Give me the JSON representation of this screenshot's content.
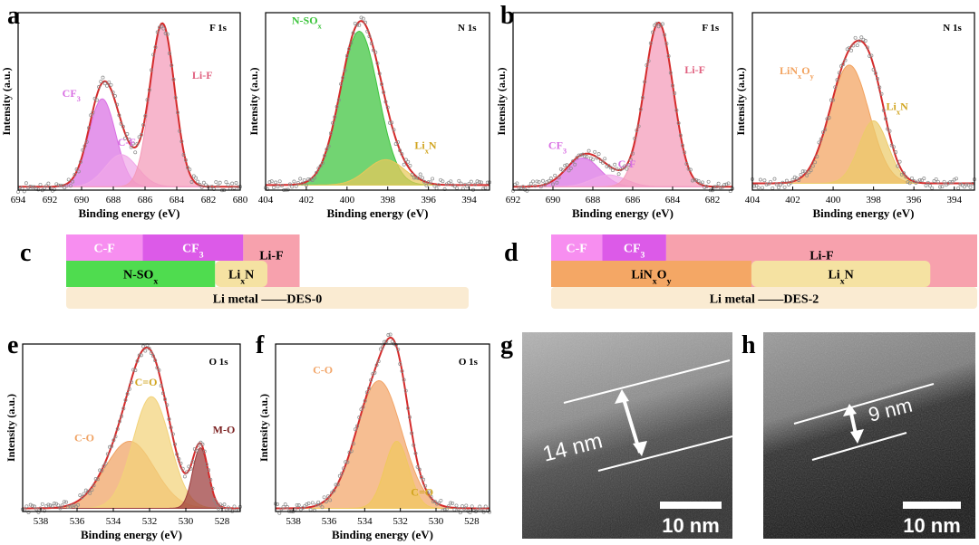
{
  "figure": {
    "panel_labels": [
      "a",
      "b",
      "c",
      "d",
      "e",
      "f",
      "g",
      "h"
    ]
  },
  "chart_data": [
    {
      "id": "a-F1s",
      "type": "area",
      "panel": "a",
      "title": "F 1s",
      "xlabel": "Binding energy (eV)",
      "ylabel": "Intensity (a.u.)",
      "xlim": [
        694,
        680
      ],
      "ylim": [
        0,
        1.05
      ],
      "xticks": [
        694,
        692,
        690,
        688,
        686,
        684,
        682,
        680
      ],
      "background": 0.02,
      "peaks": [
        {
          "name": "CF3",
          "label": "CF",
          "sub": "3",
          "center": 688.7,
          "height": 0.52,
          "fwhm": 2.0,
          "color": "#d96fe3"
        },
        {
          "name": "C-F",
          "label": "C-F",
          "center": 687.5,
          "height": 0.19,
          "fwhm": 2.4,
          "color": "#f0a8e8"
        },
        {
          "name": "Li-F",
          "label": "Li-F",
          "center": 684.9,
          "height": 0.96,
          "fwhm": 1.8,
          "color": "#f49ab8"
        }
      ],
      "envelope_color": "#d42b2b"
    },
    {
      "id": "a-N1s",
      "type": "area",
      "panel": "a",
      "title": "N 1s",
      "xlabel": "Binding energy (eV)",
      "ylabel": "Intensity (a.u.)",
      "xlim": [
        404,
        393
      ],
      "ylim": [
        0,
        1.05
      ],
      "xticks": [
        404,
        402,
        400,
        398,
        396,
        394
      ],
      "background": 0.03,
      "peaks": [
        {
          "name": "N-SOx",
          "label": "N-SO",
          "sub": "x",
          "center": 399.4,
          "height": 0.91,
          "fwhm": 2.2,
          "color": "#3cc43c"
        },
        {
          "name": "LixN",
          "label": "Li",
          "sub": "x",
          "tail": "N",
          "center": 398.1,
          "height": 0.15,
          "fwhm": 2.2,
          "color": "#e8c85a"
        }
      ],
      "envelope_color": "#d42b2b"
    },
    {
      "id": "b-F1s",
      "type": "area",
      "panel": "b",
      "title": "F 1s",
      "xlabel": "Binding energy (eV)",
      "ylabel": "Intensity (a.u.)",
      "xlim": [
        692,
        681
      ],
      "ylim": [
        0,
        1.05
      ],
      "xticks": [
        692,
        690,
        688,
        686,
        684,
        682
      ],
      "background": 0.02,
      "peaks": [
        {
          "name": "CF3",
          "label": "CF",
          "sub": "3",
          "center": 688.5,
          "height": 0.17,
          "fwhm": 2.0,
          "color": "#d96fe3"
        },
        {
          "name": "C-F",
          "label": "C-F",
          "center": 687.2,
          "height": 0.07,
          "fwhm": 2.0,
          "color": "#f0a8e8"
        },
        {
          "name": "Li-F",
          "label": "Li-F",
          "center": 684.7,
          "height": 0.97,
          "fwhm": 1.7,
          "color": "#f49ab8"
        }
      ],
      "envelope_color": "#d42b2b"
    },
    {
      "id": "b-N1s",
      "type": "area",
      "panel": "b",
      "title": "N 1s",
      "xlabel": "Binding energy (eV)",
      "ylabel": "Intensity (a.u.)",
      "xlim": [
        404,
        393
      ],
      "ylim": [
        0,
        1.05
      ],
      "xticks": [
        404,
        402,
        400,
        398,
        396,
        394
      ],
      "background": 0.04,
      "peaks": [
        {
          "name": "LiNxOy",
          "label": "LiN",
          "sub": "x",
          "tail": "O",
          "sub2": "y",
          "center": 399.2,
          "height": 0.7,
          "fwhm": 2.3,
          "color": "#f2a25e"
        },
        {
          "name": "LixN",
          "label": "Li",
          "sub": "x",
          "tail": "N",
          "center": 398.0,
          "height": 0.37,
          "fwhm": 1.7,
          "color": "#eccb6a"
        }
      ],
      "envelope_color": "#d42b2b"
    },
    {
      "id": "e-O1s",
      "type": "area",
      "panel": "e",
      "title": "O 1s",
      "xlabel": "Binding energy (eV)",
      "ylabel": "Intensity (a.u.)",
      "xlim": [
        539,
        527
      ],
      "ylim": [
        0,
        1.05
      ],
      "xticks": [
        538,
        536,
        534,
        532,
        530,
        528
      ],
      "background": 0.02,
      "peaks": [
        {
          "name": "C-O",
          "label": "C-O",
          "center": 533.1,
          "height": 0.42,
          "fwhm": 3.2,
          "color": "#f0a263"
        },
        {
          "name": "C=O",
          "label": "C=O",
          "center": 531.9,
          "height": 0.7,
          "fwhm": 2.4,
          "color": "#f2d27a"
        },
        {
          "name": "M-O",
          "label": "M-O",
          "center": 529.2,
          "height": 0.38,
          "fwhm": 1.0,
          "color": "#9b3a3a"
        }
      ],
      "envelope_color": "#d42b2b"
    },
    {
      "id": "f-O1s",
      "type": "area",
      "panel": "f",
      "title": "O 1s",
      "xlabel": "Binding energy (eV)",
      "ylabel": "Intensity (a.u.)",
      "xlim": [
        539,
        527
      ],
      "ylim": [
        0,
        1.05
      ],
      "xticks": [
        538,
        536,
        534,
        532,
        530,
        528
      ],
      "background": 0.02,
      "peaks": [
        {
          "name": "C-O",
          "label": "C-O",
          "center": 533.2,
          "height": 0.8,
          "fwhm": 3.0,
          "color": "#f2a568"
        },
        {
          "name": "C=O",
          "label": "C=O",
          "center": 532.2,
          "height": 0.42,
          "fwhm": 1.6,
          "color": "#f0c85e"
        }
      ],
      "envelope_color": "#d42b2b"
    }
  ],
  "schematics": {
    "c": {
      "panel": "c",
      "rows": [
        [
          {
            "name": "C-F",
            "label": "C-F",
            "color": "#f78ef0",
            "flex": 0.19
          },
          {
            "name": "CF3",
            "label": "CF",
            "sub": "3",
            "color": "#dc5ae8",
            "flex": 0.25
          },
          {
            "name": "Li-F",
            "label": "Li-F",
            "color": "#f7a1ad",
            "flex": 0.14
          }
        ],
        [
          {
            "name": "N-SOx",
            "label": "N-SO",
            "sub": "x",
            "color": "#4fdc4f",
            "flex": 0.37
          },
          {
            "name": "LixN",
            "label": "Li",
            "sub": "x",
            "tail": "N",
            "color": "#f5e2a2",
            "flex": 0.13
          }
        ]
      ],
      "base_label": "Li metal ——DES-0",
      "base_color": "#faebd2"
    },
    "d": {
      "panel": "d",
      "rows": [
        [
          {
            "name": "C-F",
            "label": "C-F",
            "color": "#f78ef0",
            "flex": 0.12
          },
          {
            "name": "CF3",
            "label": "CF",
            "sub": "3",
            "color": "#dc5ae8",
            "flex": 0.15
          },
          {
            "name": "Li-F",
            "label": "Li-F",
            "color": "#f7a1ad",
            "flex": 0.73
          }
        ],
        [
          {
            "name": "LiNxOy",
            "label": "LiN",
            "sub": "x",
            "tail": "O",
            "sub2": "y",
            "color": "#f4a765",
            "flex": 0.47
          },
          {
            "name": "LixN",
            "label": "Li",
            "sub": "x",
            "tail": "N",
            "color": "#f5e2a2",
            "flex": 0.42
          }
        ]
      ],
      "base_label": "Li metal ——DES-2",
      "base_color": "#faebd2"
    }
  },
  "micrographs": {
    "g": {
      "panel": "g",
      "thickness_label": "14 nm",
      "scale_label": "10 nm"
    },
    "h": {
      "panel": "h",
      "thickness_label": "9 nm",
      "scale_label": "10 nm"
    }
  }
}
